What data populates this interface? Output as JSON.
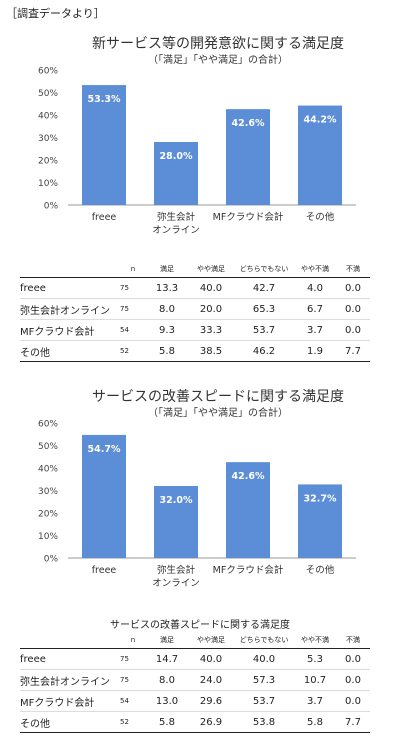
{
  "source_note": "［調査データより］",
  "chart_data": [
    {
      "type": "bar",
      "title": "新サービス等の開発意欲に関する満足度",
      "subtitle": "（「満足」「やや満足」の合計）",
      "categories": [
        "freee",
        "弥生会計\nオンライン",
        "MFクラウド会計",
        "その他"
      ],
      "values": [
        53.3,
        28.0,
        42.6,
        44.2
      ],
      "value_labels": [
        "53.3%",
        "28.0%",
        "42.6%",
        "44.2%"
      ],
      "ylim": [
        0,
        60
      ],
      "yticks": [
        "0%",
        "10%",
        "20%",
        "30%",
        "40%",
        "50%",
        "60%"
      ],
      "bar_color": "#5b8ed6",
      "grid": false
    },
    {
      "type": "bar",
      "title": "サービスの改善スピードに関する満足度",
      "subtitle": "（「満足」「やや満足」の合計）",
      "categories": [
        "freee",
        "弥生会計\nオンライン",
        "MFクラウド会計",
        "その他"
      ],
      "values": [
        54.7,
        32.0,
        42.6,
        32.7
      ],
      "value_labels": [
        "54.7%",
        "32.0%",
        "42.6%",
        "32.7%"
      ],
      "ylim": [
        0,
        60
      ],
      "yticks": [
        "0%",
        "10%",
        "20%",
        "30%",
        "40%",
        "50%",
        "60%"
      ],
      "bar_color": "#5b8ed6",
      "grid": false
    }
  ],
  "table1": {
    "headers": [
      "",
      "n",
      "満足",
      "やや満足",
      "どちらでもない",
      "やや不満",
      "不満"
    ],
    "rows": [
      [
        "freee",
        "75",
        "13.3",
        "40.0",
        "42.7",
        "4.0",
        "0.0"
      ],
      [
        "弥生会計オンライン",
        "75",
        "8.0",
        "20.0",
        "65.3",
        "6.7",
        "0.0"
      ],
      [
        "MFクラウド会計",
        "54",
        "9.3",
        "33.3",
        "53.7",
        "3.7",
        "0.0"
      ],
      [
        "その他",
        "52",
        "5.8",
        "38.5",
        "46.2",
        "1.9",
        "7.7"
      ]
    ]
  },
  "table2": {
    "title": "サービスの改善スピードに関する満足度",
    "headers": [
      "",
      "n",
      "満足",
      "やや満足",
      "どちらでもない",
      "やや不満",
      "不満"
    ],
    "rows": [
      [
        "freee",
        "75",
        "14.7",
        "40.0",
        "40.0",
        "5.3",
        "0.0"
      ],
      [
        "弥生会計オンライン",
        "75",
        "8.0",
        "24.0",
        "57.3",
        "10.7",
        "0.0"
      ],
      [
        "MFクラウド会計",
        "54",
        "13.0",
        "29.6",
        "53.7",
        "3.7",
        "0.0"
      ],
      [
        "その他",
        "52",
        "5.8",
        "26.9",
        "53.8",
        "5.8",
        "7.7"
      ]
    ]
  }
}
